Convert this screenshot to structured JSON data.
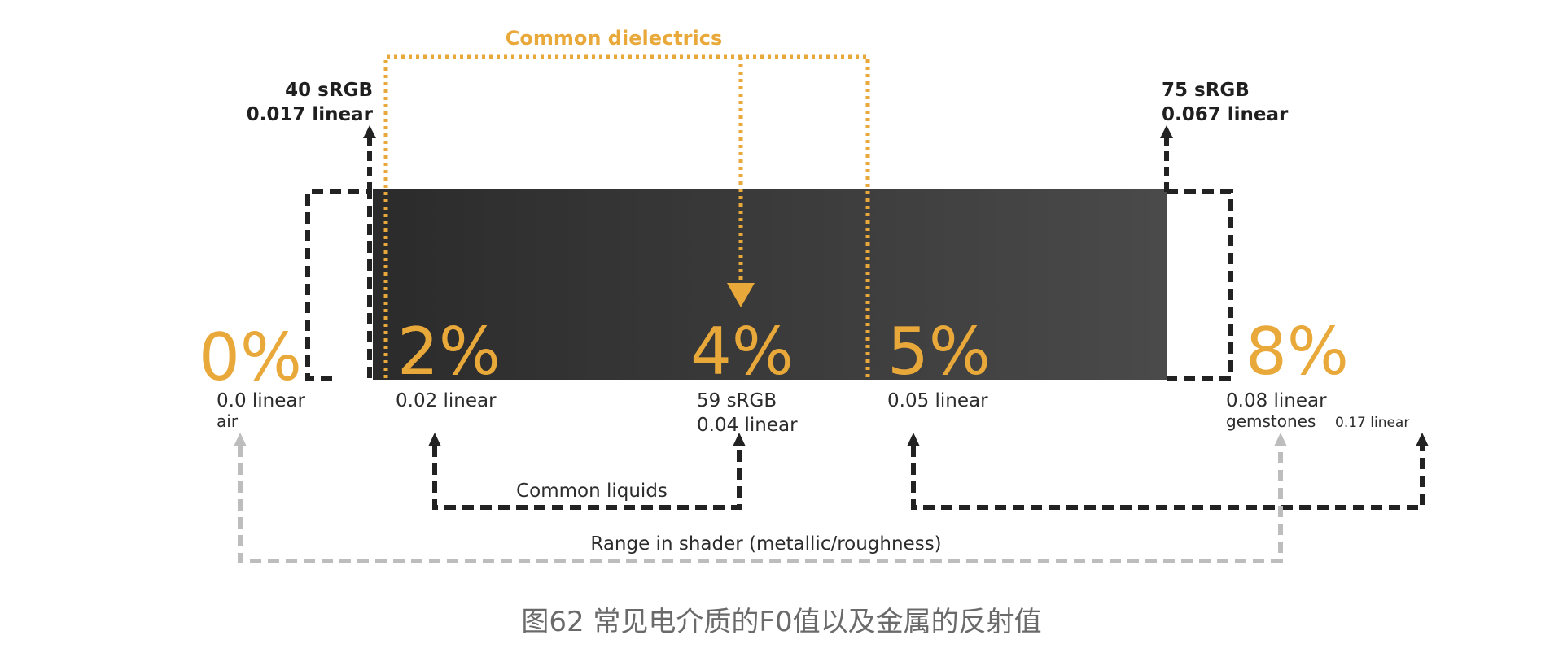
{
  "title_dielectrics": "Common dielectrics",
  "left_marker": {
    "srgb": "40 sRGB",
    "linear": "0.017 linear"
  },
  "right_marker": {
    "srgb": "75 sRGB",
    "linear": "0.067 linear"
  },
  "stops": [
    {
      "pct": "0%",
      "line1": "0.0 linear",
      "line2": "air"
    },
    {
      "pct": "2%",
      "line1": "0.02 linear"
    },
    {
      "pct": "4%",
      "line1": "59 sRGB",
      "line2": "0.04 linear"
    },
    {
      "pct": "5%",
      "line1": "0.05 linear"
    },
    {
      "pct": "8%",
      "line1": "0.08 linear",
      "line2": "gemstones"
    }
  ],
  "extra_linear": "0.17 linear",
  "liquids_label": "Common liquids",
  "shader_range_label": "Range in shader (metallic/roughness)",
  "caption": "图62 常见电介质的F0值以及金属的反射值",
  "colors": {
    "orange": "#e9a93a",
    "black": "#222222",
    "gray": "#bdbdbd",
    "bar_start": "#2b2b2b",
    "bar_end": "#4a4a4a"
  }
}
